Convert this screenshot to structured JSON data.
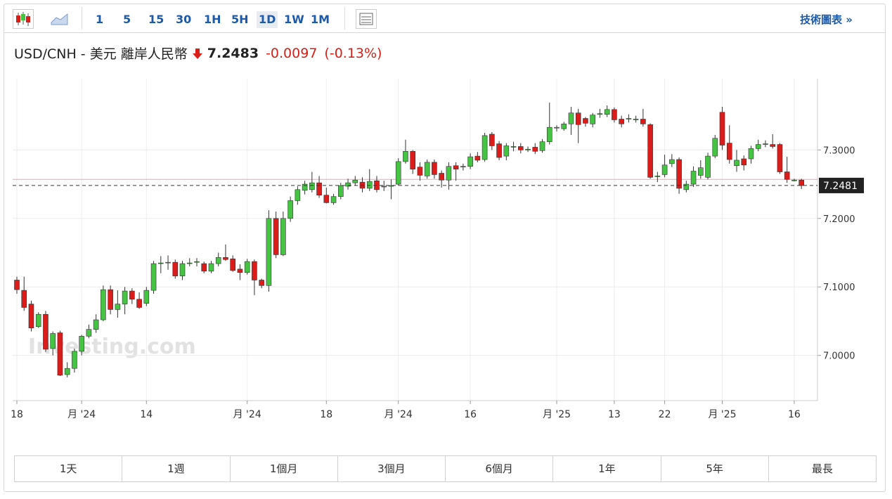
{
  "toolbar": {
    "intervals": [
      "1",
      "5",
      "15",
      "30",
      "1H",
      "5H",
      "1D",
      "1W",
      "1M"
    ],
    "active_interval": "1D",
    "link": "技術圖表 »"
  },
  "header": {
    "title": "USD/CNH - 美元 離岸人民幣",
    "price": "7.2483",
    "change": "-0.0097",
    "change_percent": "(-0.13%)"
  },
  "chart_data": {
    "type": "candlestick",
    "watermark": "Investing.com",
    "categories": [
      "18",
      null,
      null,
      null,
      null,
      null,
      null,
      null,
      null,
      "月 '24",
      null,
      null,
      null,
      null,
      null,
      null,
      null,
      null,
      "14",
      null,
      null,
      null,
      null,
      null,
      null,
      null,
      null,
      null,
      null,
      null,
      null,
      null,
      "月 '24",
      null,
      null,
      null,
      null,
      null,
      null,
      null,
      null,
      null,
      null,
      "18",
      null,
      null,
      null,
      null,
      null,
      null,
      null,
      null,
      null,
      "月 '24",
      null,
      null,
      null,
      null,
      null,
      null,
      null,
      null,
      null,
      "16",
      null,
      null,
      null,
      null,
      null,
      null,
      null,
      null,
      null,
      null,
      null,
      "月 '25",
      null,
      null,
      null,
      null,
      null,
      null,
      null,
      "13",
      null,
      null,
      null,
      null,
      null,
      null,
      "22",
      null,
      null,
      null,
      null,
      null,
      null,
      null,
      "月 '25",
      null,
      null,
      null,
      null,
      null,
      null,
      null,
      null,
      null,
      "16",
      null
    ],
    "open": [
      7.11,
      7.095,
      7.075,
      7.042,
      7.06,
      7.01,
      7.033,
      6.972,
      6.981,
      7.006,
      7.028,
      7.038,
      7.052,
      7.096,
      7.067,
      7.075,
      7.094,
      7.082,
      7.076,
      7.095,
      7.134,
      7.136,
      7.136,
      7.116,
      7.135,
      7.136,
      7.134,
      7.123,
      7.134,
      7.143,
      7.141,
      7.126,
      7.121,
      7.137,
      7.11,
      7.102,
      7.2,
      7.147,
      7.2,
      7.226,
      7.241,
      7.242,
      7.252,
      7.234,
      7.223,
      7.232,
      7.247,
      7.252,
      7.253,
      7.244,
      7.255,
      7.246,
      7.248,
      7.25,
      7.283,
      7.298,
      7.275,
      7.262,
      7.282,
      7.266,
      7.256,
      7.277,
      7.275,
      7.276,
      7.291,
      7.286,
      7.323,
      7.309,
      7.291,
      7.304,
      7.305,
      7.301,
      7.304,
      7.299,
      7.312,
      7.332,
      7.331,
      7.338,
      7.354,
      7.346,
      7.338,
      7.352,
      7.352,
      7.359,
      7.345,
      7.346,
      7.345,
      7.345,
      7.337,
      7.262,
      7.264,
      7.28,
      7.286,
      7.242,
      7.25,
      7.263,
      7.26,
      7.291,
      7.355,
      7.31,
      7.277,
      7.287,
      7.287,
      7.302,
      7.308,
      7.308,
      7.308,
      7.268,
      7.256,
      7.256
    ],
    "high": [
      7.115,
      7.115,
      7.08,
      7.063,
      7.065,
      7.035,
      7.036,
      6.99,
      7.01,
      7.03,
      7.045,
      7.06,
      7.102,
      7.102,
      7.095,
      7.1,
      7.098,
      7.092,
      7.1,
      7.138,
      7.145,
      7.146,
      7.14,
      7.138,
      7.142,
      7.142,
      7.137,
      7.138,
      7.15,
      7.162,
      7.146,
      7.133,
      7.141,
      7.14,
      7.112,
      7.212,
      7.21,
      7.21,
      7.232,
      7.247,
      7.255,
      7.268,
      7.262,
      7.245,
      7.236,
      7.252,
      7.258,
      7.262,
      7.26,
      7.272,
      7.262,
      7.255,
      7.257,
      7.288,
      7.315,
      7.3,
      7.282,
      7.286,
      7.286,
      7.27,
      7.282,
      7.282,
      7.28,
      7.295,
      7.297,
      7.325,
      7.326,
      7.313,
      7.31,
      7.312,
      7.31,
      7.305,
      7.31,
      7.316,
      7.369,
      7.336,
      7.341,
      7.363,
      7.36,
      7.348,
      7.354,
      7.36,
      7.365,
      7.362,
      7.35,
      7.352,
      7.35,
      7.36,
      7.339,
      7.268,
      7.293,
      7.294,
      7.289,
      7.255,
      7.276,
      7.285,
      7.296,
      7.322,
      7.363,
      7.336,
      7.3,
      7.292,
      7.306,
      7.315,
      7.314,
      7.323,
      7.31,
      7.29,
      7.258,
      7.258
    ],
    "low": [
      7.09,
      7.065,
      7.035,
      7.04,
      7.005,
      7.0,
      6.97,
      6.968,
      6.975,
      7.0,
      7.025,
      7.033,
      7.05,
      7.06,
      7.055,
      7.06,
      7.075,
      7.068,
      7.072,
      7.09,
      7.12,
      7.125,
      7.112,
      7.11,
      7.13,
      7.13,
      7.12,
      7.12,
      7.13,
      7.138,
      7.122,
      7.11,
      7.118,
      7.088,
      7.098,
      7.093,
      7.142,
      7.145,
      7.195,
      7.22,
      7.235,
      7.238,
      7.23,
      7.222,
      7.22,
      7.228,
      7.242,
      7.248,
      7.238,
      7.24,
      7.238,
      7.24,
      7.228,
      7.248,
      7.28,
      7.265,
      7.255,
      7.258,
      7.258,
      7.245,
      7.242,
      7.255,
      7.27,
      7.272,
      7.282,
      7.283,
      7.3,
      7.285,
      7.285,
      7.298,
      7.295,
      7.297,
      7.294,
      7.296,
      7.308,
      7.327,
      7.328,
      7.322,
      7.31,
      7.334,
      7.333,
      7.347,
      7.348,
      7.34,
      7.333,
      7.34,
      7.34,
      7.334,
      7.258,
      7.253,
      7.26,
      7.275,
      7.236,
      7.238,
      7.246,
      7.258,
      7.257,
      7.288,
      7.3,
      7.28,
      7.268,
      7.27,
      7.28,
      7.298,
      7.304,
      7.302,
      7.265,
      7.252,
      7.254,
      7.243
    ],
    "close": [
      7.096,
      7.07,
      7.04,
      7.06,
      7.009,
      7.032,
      6.971,
      6.981,
      7.006,
      7.028,
      7.038,
      7.052,
      7.096,
      7.067,
      7.075,
      7.094,
      7.082,
      7.07,
      7.095,
      7.134,
      7.135,
      7.136,
      7.116,
      7.134,
      7.135,
      7.137,
      7.123,
      7.134,
      7.143,
      7.14,
      7.124,
      7.121,
      7.137,
      7.11,
      7.102,
      7.2,
      7.147,
      7.2,
      7.226,
      7.242,
      7.25,
      7.252,
      7.234,
      7.223,
      7.232,
      7.248,
      7.252,
      7.256,
      7.244,
      7.254,
      7.242,
      7.247,
      7.248,
      7.283,
      7.298,
      7.272,
      7.263,
      7.282,
      7.264,
      7.256,
      7.276,
      7.272,
      7.276,
      7.29,
      7.285,
      7.321,
      7.306,
      7.289,
      7.306,
      7.305,
      7.3,
      7.301,
      7.298,
      7.312,
      7.333,
      7.333,
      7.338,
      7.354,
      7.337,
      7.339,
      7.351,
      7.353,
      7.359,
      7.344,
      7.338,
      7.346,
      7.345,
      7.338,
      7.26,
      7.262,
      7.278,
      7.286,
      7.244,
      7.25,
      7.269,
      7.274,
      7.291,
      7.317,
      7.307,
      7.286,
      7.285,
      7.278,
      7.302,
      7.308,
      7.309,
      7.305,
      7.268,
      7.257,
      7.256,
      7.248
    ],
    "up_color": "#45c343",
    "down_color": "#dc1b1b",
    "ylim": [
      6.934,
      7.404
    ],
    "yticks": [
      {
        "value": 7.0,
        "label": "7.0000"
      },
      {
        "value": 7.1,
        "label": "7.1000"
      },
      {
        "value": 7.2,
        "label": "7.2000"
      },
      {
        "value": 7.3,
        "label": "7.3000"
      }
    ],
    "grid": true,
    "last_value": 7.2481,
    "previous_close": 7.257
  },
  "range_buttons": [
    "1天",
    "1週",
    "1個月",
    "3個月",
    "6個月",
    "1年",
    "5年",
    "最長"
  ]
}
